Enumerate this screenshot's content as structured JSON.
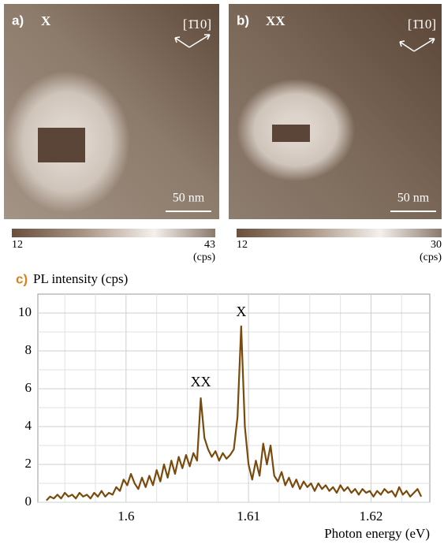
{
  "panels": [
    {
      "label": "a)",
      "title": "X",
      "direction": "[1̄10]",
      "scale_bar": "50 nm"
    },
    {
      "label": "b)",
      "title": "XX",
      "direction": "[1̄10]",
      "scale_bar": "50 nm"
    }
  ],
  "colorbars": [
    {
      "min": 12,
      "max": 43,
      "unit": "(cps)"
    },
    {
      "min": 12,
      "max": 30,
      "unit": "(cps)"
    }
  ],
  "chart_data": {
    "type": "line",
    "panel_label": "c)",
    "y_label": "PL intensity (cps)",
    "x_label": "Photon energy (eV)",
    "x": [
      1.5935,
      1.5938,
      1.5941,
      1.5944,
      1.5947,
      1.595,
      1.5953,
      1.5956,
      1.5959,
      1.5962,
      1.5965,
      1.5968,
      1.5971,
      1.5974,
      1.5977,
      1.598,
      1.5983,
      1.5986,
      1.5989,
      1.5992,
      1.5995,
      1.5998,
      1.6001,
      1.6004,
      1.6007,
      1.601,
      1.6013,
      1.6016,
      1.6019,
      1.6022,
      1.6025,
      1.6028,
      1.6031,
      1.6034,
      1.6037,
      1.604,
      1.6043,
      1.6046,
      1.6049,
      1.6052,
      1.6055,
      1.6058,
      1.6061,
      1.6064,
      1.6067,
      1.607,
      1.6073,
      1.6076,
      1.6079,
      1.6082,
      1.6085,
      1.6088,
      1.6091,
      1.6094,
      1.6097,
      1.61,
      1.6103,
      1.6106,
      1.6109,
      1.6112,
      1.6115,
      1.6118,
      1.6121,
      1.6124,
      1.6127,
      1.613,
      1.6133,
      1.6136,
      1.6139,
      1.6142,
      1.6145,
      1.6148,
      1.6151,
      1.6154,
      1.6157,
      1.616,
      1.6163,
      1.6166,
      1.6169,
      1.6172,
      1.6175,
      1.6178,
      1.6181,
      1.6184,
      1.6187,
      1.619,
      1.6193,
      1.6196,
      1.6199,
      1.6202,
      1.6205,
      1.6208,
      1.6211,
      1.6214,
      1.6217,
      1.622,
      1.6223,
      1.6226,
      1.6229,
      1.6232,
      1.6235,
      1.6238,
      1.6241
    ],
    "series": [
      {
        "color": "#7a4a0c",
        "values": [
          0.1,
          0.3,
          0.2,
          0.4,
          0.2,
          0.5,
          0.3,
          0.4,
          0.2,
          0.5,
          0.3,
          0.4,
          0.2,
          0.5,
          0.3,
          0.6,
          0.3,
          0.5,
          0.4,
          0.8,
          0.6,
          1.2,
          0.9,
          1.5,
          1.0,
          0.7,
          1.3,
          0.8,
          1.4,
          0.9,
          1.7,
          1.1,
          2.0,
          1.3,
          2.2,
          1.5,
          2.4,
          1.8,
          2.5,
          1.9,
          2.6,
          2.2,
          5.5,
          3.4,
          2.8,
          2.4,
          2.7,
          2.2,
          2.6,
          2.3,
          2.5,
          2.8,
          4.5,
          9.3,
          4.0,
          2.0,
          1.2,
          2.2,
          1.4,
          3.1,
          2.0,
          3.0,
          1.4,
          1.1,
          1.6,
          0.9,
          1.3,
          0.8,
          1.2,
          0.7,
          1.1,
          0.8,
          1.0,
          0.6,
          1.0,
          0.7,
          0.9,
          0.6,
          0.8,
          0.5,
          0.9,
          0.6,
          0.8,
          0.5,
          0.7,
          0.4,
          0.7,
          0.5,
          0.6,
          0.3,
          0.6,
          0.4,
          0.7,
          0.5,
          0.6,
          0.3,
          0.8,
          0.4,
          0.6,
          0.3,
          0.5,
          0.7,
          0.3
        ]
      }
    ],
    "annotations": [
      {
        "text": "XX",
        "x": 1.6061,
        "y": 6.3
      },
      {
        "text": "X",
        "x": 1.6094,
        "y": 10
      }
    ],
    "xlim": [
      1.5928,
      1.6248
    ],
    "ylim": [
      0,
      11
    ],
    "xticks": [
      1.6,
      1.61,
      1.62
    ],
    "yticks": [
      0,
      2,
      4,
      6,
      8,
      10
    ],
    "x_minor_ticks": [
      1.595,
      1.5975,
      1.6025,
      1.605,
      1.6075,
      1.6125,
      1.615,
      1.6175,
      1.6225
    ],
    "y_minor_ticks": [
      1,
      3,
      5,
      7,
      9
    ],
    "grid": true
  }
}
